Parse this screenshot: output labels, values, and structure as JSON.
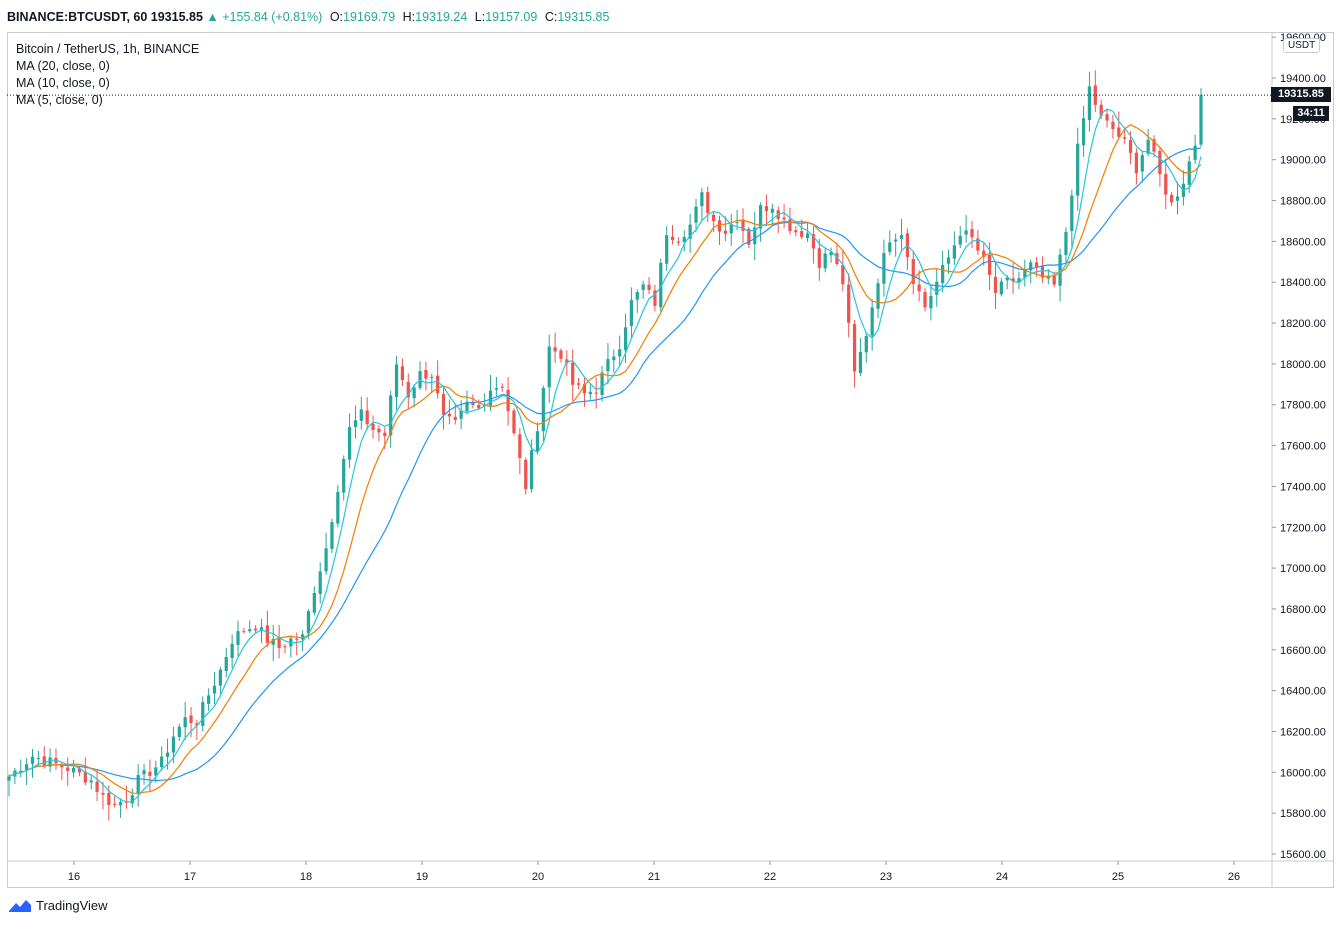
{
  "header": {
    "symbol": "BINANCE:BTCUSDT, 60",
    "last": "19315.85",
    "change": "▲ +155.84 (+0.81%)",
    "open_label": "O:",
    "open": "19169.79",
    "high_label": "H:",
    "high": "19319.24",
    "low_label": "L:",
    "low": "19157.09",
    "close_label": "C:",
    "close": "19315.85"
  },
  "legend": {
    "title": "Bitcoin / TetherUS, 1h, BINANCE",
    "ma20": "MA (20, close, 0)",
    "ma10": "MA (10, close, 0)",
    "ma5": "MA (5, close, 0)"
  },
  "axis": {
    "unit": "USDT",
    "price_badge": "19315.85",
    "timer": "34:11"
  },
  "brand": {
    "name": "TradingView"
  },
  "colors": {
    "up": "#26a69a",
    "down": "#ef5350",
    "ma20": "#2196f3",
    "ma10": "#f57c00",
    "ma5": "#26c6da",
    "bg": "#ffffff",
    "grid": "#e0e3eb"
  },
  "chart_data": {
    "type": "candlestick",
    "ylim": [
      15550,
      19650
    ],
    "yticks": [
      "15600.00",
      "15800.00",
      "16000.00",
      "16200.00",
      "16400.00",
      "16600.00",
      "16800.00",
      "17000.00",
      "17200.00",
      "17400.00",
      "17600.00",
      "17800.00",
      "18000.00",
      "18200.00",
      "18400.00",
      "18600.00",
      "18800.00",
      "19000.00",
      "19200.00",
      "19400.00",
      "19600.00"
    ],
    "xticks": [
      "16",
      "17",
      "18",
      "19",
      "20",
      "21",
      "22",
      "23",
      "24",
      "25",
      "26"
    ],
    "current_price": 19315.85,
    "close_path": [
      [
        0,
        15980
      ],
      [
        4,
        16080
      ],
      [
        7,
        16050
      ],
      [
        10,
        16020
      ],
      [
        14,
        15960
      ],
      [
        16,
        15880
      ],
      [
        18,
        15840
      ],
      [
        20,
        15870
      ],
      [
        22,
        15960
      ],
      [
        26,
        16050
      ],
      [
        28,
        16180
      ],
      [
        30,
        16260
      ],
      [
        32,
        16250
      ],
      [
        34,
        16380
      ],
      [
        36,
        16500
      ],
      [
        38,
        16650
      ],
      [
        40,
        16700
      ],
      [
        42,
        16720
      ],
      [
        44,
        16650
      ],
      [
        46,
        16610
      ],
      [
        48,
        16650
      ],
      [
        50,
        16660
      ],
      [
        52,
        16900
      ],
      [
        54,
        17100
      ],
      [
        56,
        17400
      ],
      [
        58,
        17680
      ],
      [
        60,
        17750
      ],
      [
        62,
        17680
      ],
      [
        64,
        17650
      ],
      [
        66,
        18000
      ],
      [
        68,
        17850
      ],
      [
        70,
        17950
      ],
      [
        72,
        17950
      ],
      [
        74,
        17730
      ],
      [
        76,
        17700
      ],
      [
        78,
        17800
      ],
      [
        80,
        17780
      ],
      [
        82,
        17880
      ],
      [
        84,
        17900
      ],
      [
        86,
        17650
      ],
      [
        88,
        17400
      ],
      [
        90,
        17700
      ],
      [
        92,
        18080
      ],
      [
        94,
        18050
      ],
      [
        96,
        17900
      ],
      [
        98,
        17850
      ],
      [
        100,
        17880
      ],
      [
        102,
        18000
      ],
      [
        104,
        18100
      ],
      [
        106,
        18300
      ],
      [
        108,
        18380
      ],
      [
        110,
        18300
      ],
      [
        112,
        18650
      ],
      [
        114,
        18620
      ],
      [
        116,
        18680
      ],
      [
        118,
        18820
      ],
      [
        120,
        18700
      ],
      [
        122,
        18650
      ],
      [
        124,
        18720
      ],
      [
        126,
        18600
      ],
      [
        128,
        18760
      ],
      [
        130,
        18780
      ],
      [
        132,
        18700
      ],
      [
        134,
        18650
      ],
      [
        136,
        18640
      ],
      [
        138,
        18500
      ],
      [
        140,
        18550
      ],
      [
        142,
        18400
      ],
      [
        144,
        17950
      ],
      [
        146,
        18150
      ],
      [
        148,
        18420
      ],
      [
        150,
        18620
      ],
      [
        152,
        18650
      ],
      [
        154,
        18420
      ],
      [
        156,
        18280
      ],
      [
        158,
        18400
      ],
      [
        160,
        18520
      ],
      [
        162,
        18650
      ],
      [
        164,
        18610
      ],
      [
        166,
        18500
      ],
      [
        168,
        18350
      ],
      [
        170,
        18400
      ],
      [
        172,
        18420
      ],
      [
        174,
        18480
      ],
      [
        176,
        18420
      ],
      [
        178,
        18380
      ],
      [
        180,
        18650
      ],
      [
        182,
        19050
      ],
      [
        184,
        19350
      ],
      [
        186,
        19200
      ],
      [
        188,
        19150
      ],
      [
        190,
        19080
      ],
      [
        192,
        18960
      ],
      [
        194,
        19100
      ],
      [
        196,
        18920
      ],
      [
        198,
        18780
      ],
      [
        200,
        18900
      ],
      [
        202,
        19080
      ],
      [
        203,
        19316
      ]
    ]
  }
}
